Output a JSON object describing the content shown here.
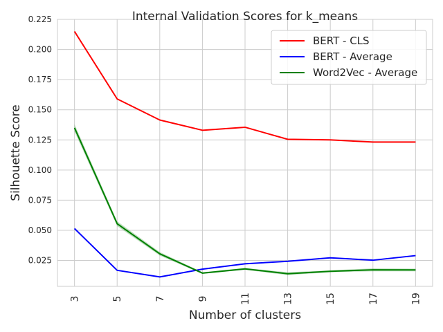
{
  "chart_data": {
    "type": "line",
    "title": "Internal Validation Scores for k_means",
    "xlabel": "Number of clusters",
    "ylabel": "Silhouette Score",
    "x": [
      3,
      5,
      7,
      9,
      11,
      13,
      15,
      17,
      19
    ],
    "xticks": [
      "3",
      "5",
      "7",
      "9",
      "11",
      "13",
      "15",
      "17",
      "19"
    ],
    "yticks": [
      "0.025",
      "0.050",
      "0.075",
      "0.100",
      "0.125",
      "0.150",
      "0.175",
      "0.200",
      "0.225"
    ],
    "ylim": [
      0.0035,
      0.225
    ],
    "grid": true,
    "legend_position": "top-right",
    "series": [
      {
        "name": "BERT - CLS",
        "color": "#ff0000",
        "values": [
          0.215,
          0.159,
          0.1415,
          0.133,
          0.1355,
          0.1255,
          0.125,
          0.1232,
          0.1232
        ]
      },
      {
        "name": "BERT - Average",
        "color": "#0000ff",
        "values": [
          0.0515,
          0.0168,
          0.0113,
          0.0178,
          0.0222,
          0.0243,
          0.0272,
          0.0252,
          0.029
        ]
      },
      {
        "name": "Word2Vec - Average",
        "color": "#008000",
        "values": [
          0.135,
          0.0555,
          0.0305,
          0.0145,
          0.018,
          0.014,
          0.016,
          0.0172,
          0.0171
        ],
        "band_lower": [
          0.132,
          0.0535,
          0.029,
          0.0138,
          0.0172,
          0.0128,
          0.0152,
          0.016,
          0.016
        ],
        "band_upper": [
          0.138,
          0.0575,
          0.032,
          0.0152,
          0.0188,
          0.0152,
          0.0168,
          0.0184,
          0.0182
        ]
      }
    ]
  }
}
